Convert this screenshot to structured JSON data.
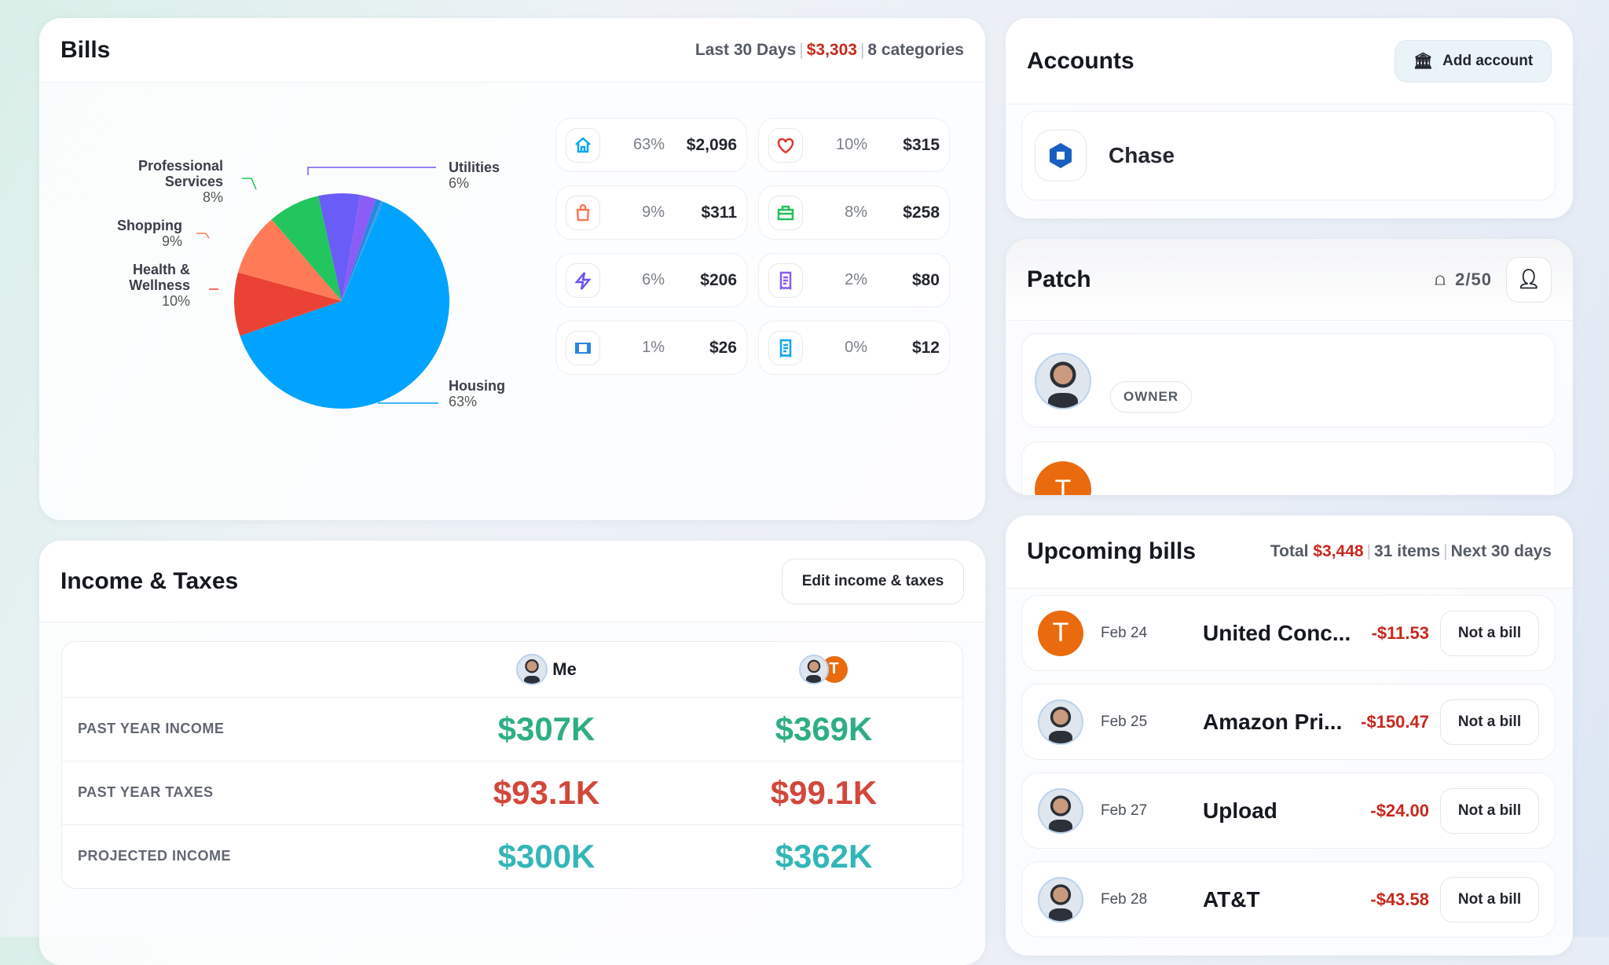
{
  "bills": {
    "title": "Bills",
    "range": "Last 30 Days",
    "total": "$3,303",
    "categories_count": "8 categories",
    "tiles": [
      {
        "icon": "house-icon",
        "color": "#0ea5f0",
        "pct": "63%",
        "amount": "$2,096"
      },
      {
        "icon": "heart-icon",
        "color": "#e2382c",
        "pct": "10%",
        "amount": "$315"
      },
      {
        "icon": "shopping-bag-icon",
        "color": "#f57a55",
        "pct": "9%",
        "amount": "$311"
      },
      {
        "icon": "briefcase-icon",
        "color": "#22c05d",
        "pct": "8%",
        "amount": "$258"
      },
      {
        "icon": "lightning-icon",
        "color": "#6655f5",
        "pct": "6%",
        "amount": "$206"
      },
      {
        "icon": "receipt-icon",
        "color": "#8a5cf0",
        "pct": "2%",
        "amount": "$80"
      },
      {
        "icon": "film-icon",
        "color": "#2a86e0",
        "pct": "1%",
        "amount": "$26"
      },
      {
        "icon": "receipt-icon",
        "color": "#0ea5f0",
        "pct": "0%",
        "amount": "$12"
      }
    ]
  },
  "chart_data": {
    "type": "pie",
    "slices": [
      {
        "label": "Utilities",
        "pct_label": "6%",
        "value": 206,
        "color": "#6a5cf7"
      },
      {
        "label": "",
        "value": 80,
        "color": "#8b5cf6"
      },
      {
        "label": "",
        "value": 26,
        "color": "#2a86e0"
      },
      {
        "label": "",
        "value": 12,
        "color": "#3aa0e8"
      },
      {
        "label": "Housing",
        "pct_label": "63%",
        "value": 2096,
        "color": "#00a3ff"
      },
      {
        "label": "Health & Wellness",
        "pct_label": "10%",
        "value": 315,
        "color": "#ea4335"
      },
      {
        "label": "Shopping",
        "pct_label": "9%",
        "value": 311,
        "color": "#ff7b57"
      },
      {
        "label": "Professional Services",
        "pct_label": "8%",
        "value": 258,
        "color": "#22c55e"
      }
    ]
  },
  "income": {
    "title": "Income & Taxes",
    "edit_label": "Edit income & taxes",
    "col_me": "Me",
    "partner_initial": "T",
    "rows": [
      {
        "label": "PAST YEAR INCOME",
        "me": "$307K",
        "joint": "$369K"
      },
      {
        "label": "PAST YEAR TAXES",
        "me": "$93.1K",
        "joint": "$99.1K"
      },
      {
        "label": "PROJECTED INCOME",
        "me": "$300K",
        "joint": "$362K"
      }
    ]
  },
  "accounts": {
    "title": "Accounts",
    "add_label": "Add account",
    "items": [
      {
        "name": "Chase"
      }
    ]
  },
  "patch": {
    "title": "Patch",
    "count": "2/50",
    "members": [
      {
        "badge": "OWNER"
      },
      {
        "initial": "T"
      }
    ]
  },
  "upcoming": {
    "title": "Upcoming bills",
    "total_label": "Total",
    "total": "$3,448",
    "items_count": "31 items",
    "range": "Next 30 days",
    "items": [
      {
        "avatar": "T",
        "date": "Feb 24",
        "name": "United Conc...",
        "amount": "-$11.53",
        "action": "Not a bill"
      },
      {
        "avatar": "photo",
        "date": "Feb 25",
        "name": "Amazon Pri...",
        "amount": "-$150.47",
        "action": "Not a bill"
      },
      {
        "avatar": "photo",
        "date": "Feb 27",
        "name": "Upload",
        "amount": "-$24.00",
        "action": "Not a bill"
      },
      {
        "avatar": "photo",
        "date": "Feb 28",
        "name": "AT&T",
        "amount": "-$43.58",
        "action": "Not a bill"
      }
    ]
  }
}
